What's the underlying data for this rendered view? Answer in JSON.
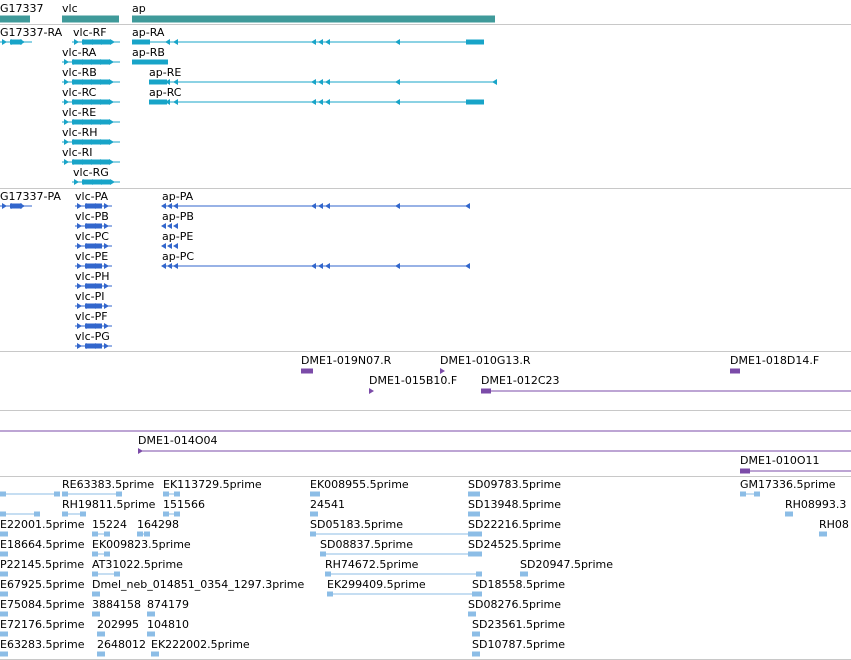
{
  "colors": {
    "gene": "#3f9a9a",
    "transcript": "#18a4c8",
    "protein": "#3266cc",
    "bac": "#7b4ba8",
    "est": "#8cbde6",
    "divider": "#c8c8c8"
  },
  "genes": {
    "labels": [
      "G17337",
      "vlc",
      "ap"
    ]
  },
  "transcripts": {
    "labels": [
      "G17337-RA",
      "vlc-RF",
      "vlc-RA",
      "vlc-RB",
      "vlc-RC",
      "vlc-RE",
      "vlc-RH",
      "vlc-RI",
      "vlc-RG",
      "ap-RA",
      "ap-RB",
      "ap-RE",
      "ap-RC"
    ]
  },
  "proteins": {
    "labels": [
      "G17337-PA",
      "vlc-PA",
      "vlc-PB",
      "vlc-PC",
      "vlc-PE",
      "vlc-PH",
      "vlc-PI",
      "vlc-PF",
      "vlc-PG",
      "ap-PA",
      "ap-PB",
      "ap-PE",
      "ap-PC"
    ]
  },
  "bac_clones": {
    "labels": [
      "DME1-019N07.R",
      "DME1-010G13.R",
      "DME1-018D14.F",
      "DME1-015B10.F",
      "DME1-012C23"
    ]
  },
  "bac_ends": {
    "labels": [
      "DME1-014O04",
      "DME1-010O11"
    ]
  },
  "ests": {
    "labels": [
      "RE63383.5prime",
      "EK113729.5prime",
      "EK008955.5prime",
      "SD09783.5prime",
      "GM17336.5prime",
      "RH19811.5prime",
      "151566",
      "24541",
      "SD13948.5prime",
      "RH08993.3",
      "E22001.5prime",
      "15224",
      "164298",
      "SD05183.5prime",
      "SD22216.5prime",
      "RH08",
      "E18664.5prime",
      "EK009823.5prime",
      "SD08837.5prime",
      "SD24525.5prime",
      "P22145.5prime",
      "AT31022.5prime",
      "RH74672.5prime",
      "SD20947.5prime",
      "E67925.5prime",
      "Dmel_neb_014851_0354_1297.3prime",
      "EK299409.5prime",
      "SD18558.5prime",
      "E75084.5prime",
      "3884158",
      "874179",
      "SD08276.5prime",
      "E72176.5prime",
      "202995",
      "104810",
      "SD23561.5prime",
      "E63283.5prime",
      "2648012",
      "EK222002.5prime",
      "SD10787.5prime"
    ]
  }
}
